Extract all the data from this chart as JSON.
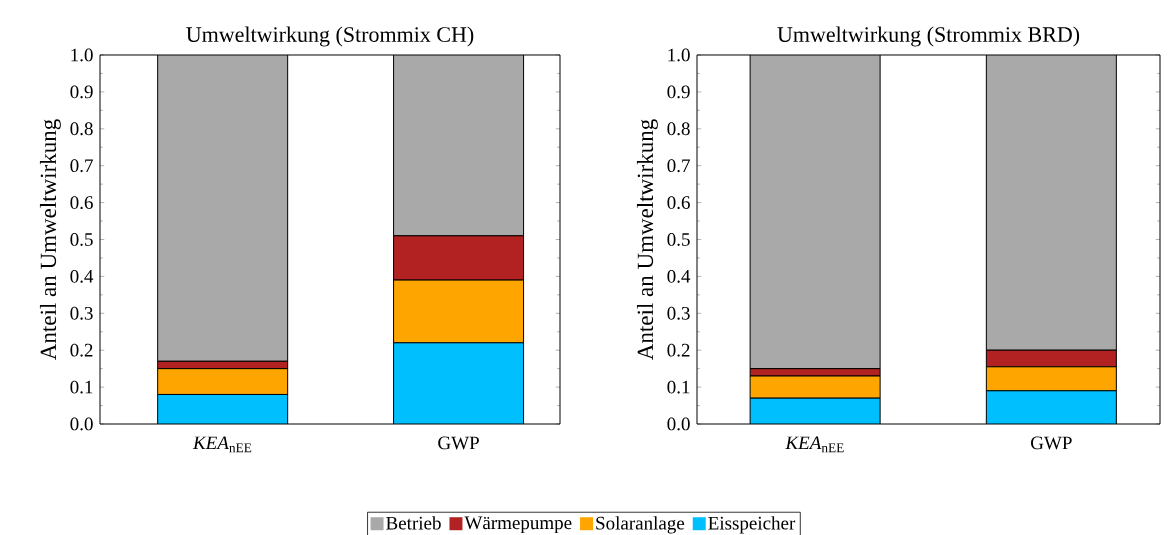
{
  "chart_data": [
    {
      "type": "bar",
      "stacked": true,
      "title": "Umweltwirkung (Strommix CH)",
      "ylabel": "Anteil an Umweltwirkung",
      "categories": [
        "*KEA*$_{nEE}$",
        "GWP"
      ],
      "series": [
        {
          "name": "Eisspeicher",
          "color": "#00bfff",
          "values": [
            0.08,
            0.22
          ]
        },
        {
          "name": "Solaranlage",
          "color": "#ffa500",
          "values": [
            0.07,
            0.17
          ]
        },
        {
          "name": "Wärmepumpe",
          "color": "#b22222",
          "values": [
            0.02,
            0.12
          ]
        },
        {
          "name": "Betrieb",
          "color": "#a9a9a9",
          "values": [
            0.83,
            0.49
          ]
        }
      ],
      "ylim": [
        0,
        1
      ],
      "yticks": [
        {
          "value": 0,
          "label": "0.0"
        },
        {
          "value": 0.1,
          "label": "0.1"
        },
        {
          "value": 0.2,
          "label": "0.2"
        },
        {
          "value": 0.3,
          "label": "0.3"
        },
        {
          "value": 0.4,
          "label": "0.4"
        },
        {
          "value": 0.5,
          "label": "0.5"
        },
        {
          "value": 0.6,
          "label": "0.6"
        },
        {
          "value": 0.7,
          "label": "0.7"
        },
        {
          "value": 0.8,
          "label": "0.8"
        },
        {
          "value": 0.9,
          "label": "0.9"
        },
        {
          "value": 1,
          "label": "1.0"
        }
      ],
      "grid": false,
      "legend": "bottom"
    },
    {
      "type": "bar",
      "stacked": true,
      "title": "Umweltwirkung (Strommix BRD)",
      "ylabel": "Anteil an Umweltwirkung",
      "categories": [
        "*KEA*$_{nEE}$",
        "GWP"
      ],
      "series": [
        {
          "color": "#00bfff",
          "values": [
            0.07,
            0.09
          ]
        },
        {
          "color": "#ffa500",
          "values": [
            0.06,
            0.065
          ]
        },
        {
          "color": "#b22222",
          "values": [
            0.02,
            0.045
          ]
        },
        {
          "color": "#a9a9a9",
          "values": [
            0.85,
            0.8
          ]
        }
      ],
      "ylim": [
        0,
        1
      ],
      "yticks": [
        {
          "value": 0,
          "label": "0.0"
        },
        {
          "value": 0.1,
          "label": "0.1"
        },
        {
          "value": 0.2,
          "label": "0.2"
        },
        {
          "value": 0.3,
          "label": "0.3"
        },
        {
          "value": 0.4,
          "label": "0.4"
        },
        {
          "value": 0.5,
          "label": "0.5"
        },
        {
          "value": 0.6,
          "label": "0.6"
        },
        {
          "value": 0.7,
          "label": "0.7"
        },
        {
          "value": 0.8,
          "label": "0.8"
        },
        {
          "value": 0.9,
          "label": "0.9"
        },
        {
          "value": 1,
          "label": "1.0"
        }
      ],
      "grid": false,
      "legend": false
    }
  ]
}
